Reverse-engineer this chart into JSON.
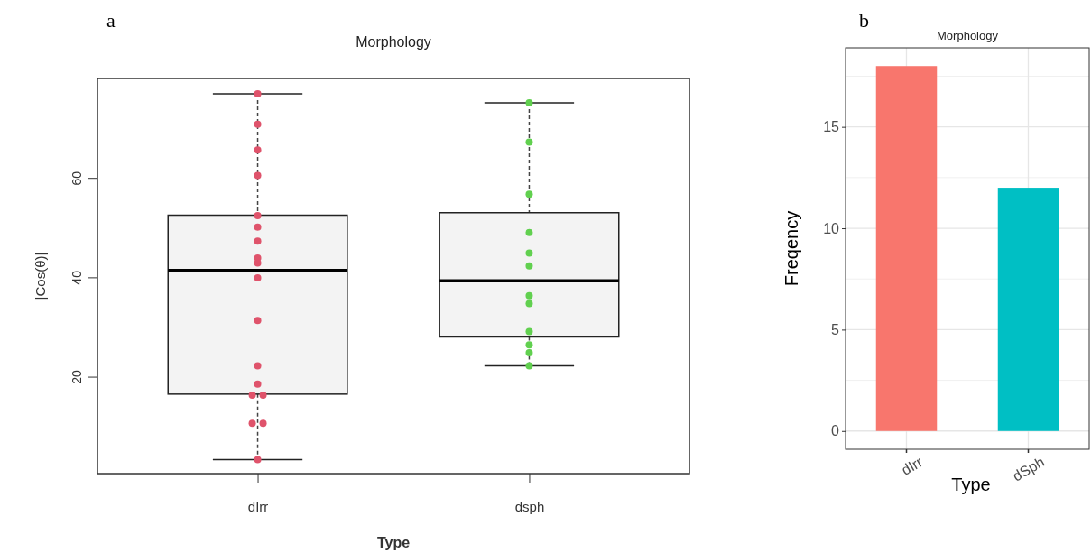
{
  "chart_data": [
    {
      "type": "box",
      "title": "Morphology",
      "xlabel": "Type",
      "ylabel": "|Cos(θ)|",
      "categories": [
        "dIrr",
        "dsph"
      ],
      "ylim": [
        0.5,
        80
      ],
      "yticks": [
        20,
        40,
        60
      ],
      "grid": false,
      "annotations": [
        "a"
      ],
      "boxes": [
        {
          "low": 3.3,
          "q1": 16.5,
          "median": 41.4,
          "q3": 52.5,
          "high": 76.9
        },
        {
          "low": 22.2,
          "q1": 28.0,
          "median": 39.3,
          "q3": 53.0,
          "high": 75.1
        }
      ],
      "series": [
        {
          "type": "scatter",
          "color": "#df536b",
          "x": [
            "dIrr",
            "dIrr",
            "dIrr",
            "dIrr",
            "dIrr",
            "dIrr",
            "dIrr",
            "dIrr",
            "dIrr",
            "dIrr",
            "dIrr",
            "dIrr",
            "dIrr",
            "dIrr",
            "dIrr",
            "dIrr",
            "dIrr",
            "dIrr"
          ],
          "values": [
            76.9,
            70.8,
            65.6,
            60.5,
            52.4,
            50.1,
            47.3,
            43.9,
            42.9,
            39.9,
            31.3,
            22.2,
            18.5,
            16.3,
            16.3,
            10.6,
            10.6,
            3.3
          ]
        },
        {
          "type": "scatter",
          "color": "#61d04f",
          "x": [
            "dsph",
            "dsph",
            "dsph",
            "dsph",
            "dsph",
            "dsph",
            "dsph",
            "dsph",
            "dsph",
            "dsph",
            "dsph",
            "dsph"
          ],
          "values": [
            75.1,
            67.2,
            56.7,
            49.0,
            44.9,
            42.3,
            36.3,
            34.7,
            29.1,
            26.4,
            24.8,
            22.2
          ]
        }
      ]
    },
    {
      "type": "bar",
      "title": "Morphology",
      "xlabel": "Type",
      "ylabel": "Freqency",
      "categories": [
        "dIrr",
        "dSph"
      ],
      "values": [
        18,
        12
      ],
      "colors": [
        "#f8766d",
        "#00bfc4"
      ],
      "ylim": [
        -0.9,
        18.9
      ],
      "yticks": [
        0,
        5,
        10,
        15
      ],
      "grid": true,
      "annotations": [
        "b"
      ]
    }
  ]
}
